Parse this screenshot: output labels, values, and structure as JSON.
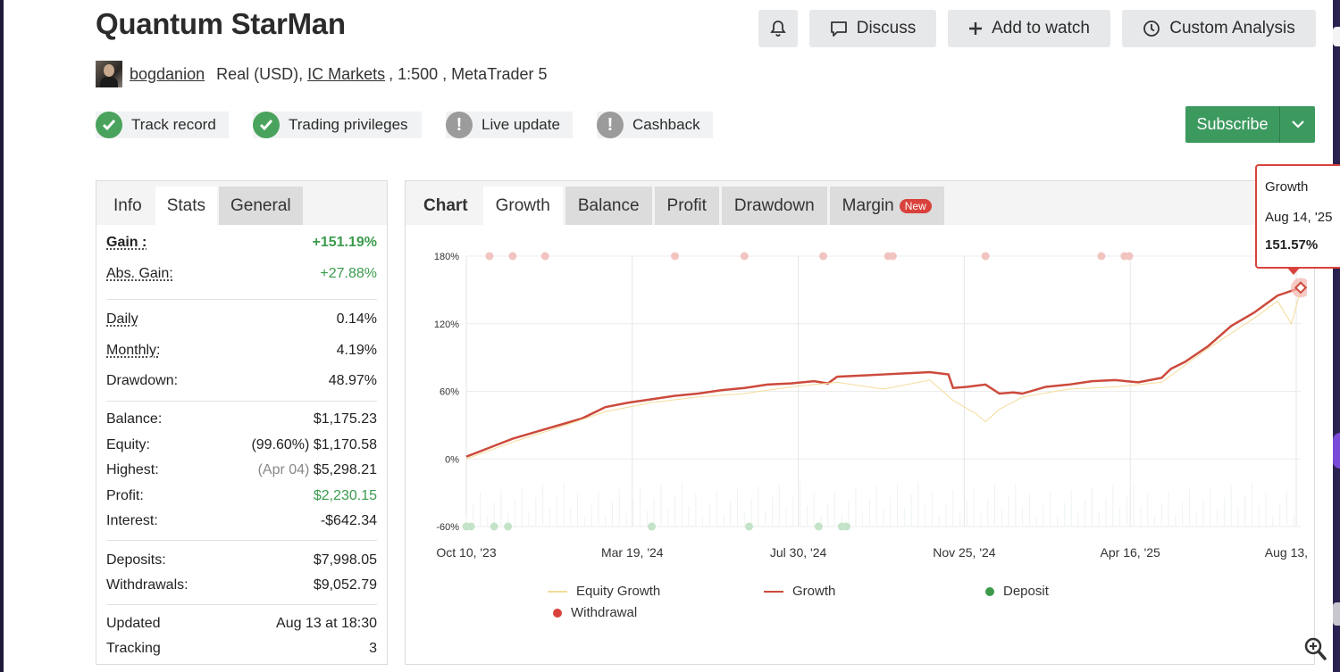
{
  "header": {
    "title": "Quantum StarMan",
    "discuss_label": "Discuss",
    "add_watch_label": "Add to watch",
    "custom_analysis_label": "Custom Analysis"
  },
  "account": {
    "username": "bogdanion",
    "type": "Real (USD),",
    "broker": "IC Markets",
    "leverage": ", 1:500 , MetaTrader 5"
  },
  "badges": [
    {
      "label": "Track record",
      "status": "ok"
    },
    {
      "label": "Trading privileges",
      "status": "ok"
    },
    {
      "label": "Live update",
      "status": "warn"
    },
    {
      "label": "Cashback",
      "status": "warn"
    }
  ],
  "subscribe_label": "Subscribe",
  "left_tabs": [
    "Info",
    "Stats",
    "General"
  ],
  "stats": {
    "gain_label": "Gain :",
    "gain": "+151.19%",
    "abs_gain_label": "Abs. Gain:",
    "abs_gain": "+27.88%",
    "daily_label": "Daily",
    "daily": "0.14%",
    "monthly_label": "Monthly:",
    "monthly": "4.19%",
    "drawdown_label": "Drawdown:",
    "drawdown": "48.97%",
    "balance_label": "Balance:",
    "balance": "$1,175.23",
    "equity_label": "Equity:",
    "equity_pct": "(99.60%)",
    "equity": "$1,170.58",
    "highest_label": "Highest:",
    "highest_date": "(Apr 04)",
    "highest": "$5,298.21",
    "profit_label": "Profit:",
    "profit": "$2,230.15",
    "interest_label": "Interest:",
    "interest": "-$642.34",
    "deposits_label": "Deposits:",
    "deposits": "$7,998.05",
    "withdrawals_label": "Withdrawals:",
    "withdrawals": "$9,052.79",
    "updated_label": "Updated",
    "updated": "Aug 13 at 18:30",
    "tracking_label": "Tracking",
    "tracking": "3"
  },
  "chart_tabs": [
    "Chart",
    "Growth",
    "Balance",
    "Profit",
    "Drawdown",
    "Margin"
  ],
  "new_badge": "New",
  "tooltip": {
    "series": "Growth",
    "date": "Aug 14, '25",
    "value": "151.57%"
  },
  "legend": {
    "equity_growth": "Equity Growth",
    "growth": "Growth",
    "deposit": "Deposit",
    "withdrawal": "Withdrawal"
  },
  "colors": {
    "growth": "#cc4a3c",
    "equity_growth": "#f3dc9a",
    "deposit": "#3c9a4a",
    "withdrawal": "#d9423c",
    "subscribe": "#3c9a5f"
  },
  "chart_data": {
    "type": "line",
    "x_tick_labels": [
      "Oct 10, '23",
      "Mar 19, '24",
      "Jul 30, '24",
      "Nov 25, '24",
      "Apr 16, '25",
      "Aug 13, '25"
    ],
    "y_tick_labels": [
      "180%",
      "120%",
      "60%",
      "0%",
      "-60%"
    ],
    "ylim": [
      -60,
      180
    ],
    "grid": true,
    "legend_position": "bottom",
    "series": [
      {
        "name": "Growth",
        "x": [
          0,
          5,
          10,
          15,
          20,
          25,
          28,
          30,
          35,
          40,
          45,
          50,
          55,
          60,
          65,
          70,
          75,
          78,
          80,
          85,
          90,
          95,
          100,
          104,
          105,
          108,
          112,
          115,
          118,
          120,
          125,
          130,
          135,
          140,
          145,
          150,
          152,
          155,
          160,
          165,
          170,
          175,
          180
        ],
        "values": [
          2,
          10,
          18,
          24,
          30,
          36,
          42,
          46,
          50,
          53,
          56,
          58,
          61,
          63,
          66,
          67,
          69,
          67,
          73,
          74,
          75,
          76,
          77,
          75,
          63,
          64,
          66,
          58,
          59,
          58,
          64,
          66,
          69,
          70,
          68,
          72,
          80,
          86,
          100,
          118,
          130,
          145,
          152
        ]
      },
      {
        "name": "Equity Growth",
        "x": [
          0,
          10,
          20,
          30,
          40,
          50,
          60,
          70,
          80,
          90,
          100,
          105,
          110,
          112,
          115,
          120,
          130,
          140,
          150,
          160,
          170,
          175,
          178,
          180
        ],
        "values": [
          0,
          15,
          28,
          42,
          50,
          55,
          58,
          64,
          68,
          62,
          70,
          52,
          40,
          33,
          44,
          55,
          62,
          64,
          68,
          98,
          125,
          140,
          120,
          150
        ]
      }
    ],
    "markers": {
      "withdrawal_x": [
        5,
        10,
        17,
        45,
        60,
        77,
        91,
        92,
        112,
        137,
        142,
        143,
        178
      ],
      "deposit_x": [
        0,
        1,
        6,
        9,
        40,
        61,
        76,
        81,
        82
      ]
    }
  }
}
